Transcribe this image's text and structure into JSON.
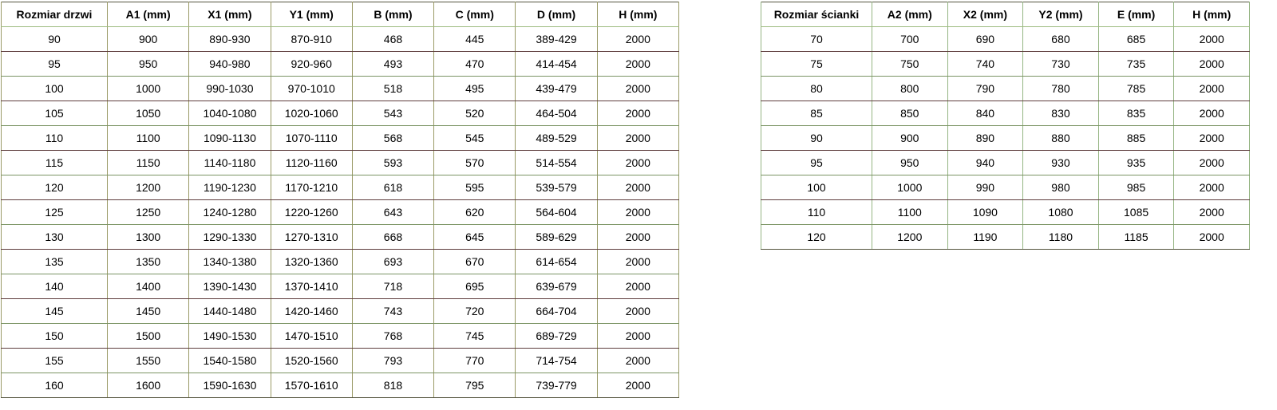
{
  "page": {
    "background": "#ffffff",
    "text_color": "#000000"
  },
  "colors": {
    "outer_border": "#55553f",
    "vertical_border_doors": "#9a9a66",
    "vertical_border_walls": "#95b583",
    "header_divider_green": "#9dbb7f",
    "row_divider_green": "#7b9464",
    "row_divider_maroon": "#5e3d3d"
  },
  "doors_table": {
    "name": "doors-size-table",
    "headers": [
      "Rozmiar drzwi",
      "A1 (mm)",
      "X1 (mm)",
      "Y1 (mm)",
      "B (mm)",
      "C (mm)",
      "D (mm)",
      "H (mm)"
    ],
    "rows": [
      [
        "90",
        "900",
        "890-930",
        "870-910",
        "468",
        "445",
        "389-429",
        "2000"
      ],
      [
        "95",
        "950",
        "940-980",
        "920-960",
        "493",
        "470",
        "414-454",
        "2000"
      ],
      [
        "100",
        "1000",
        "990-1030",
        "970-1010",
        "518",
        "495",
        "439-479",
        "2000"
      ],
      [
        "105",
        "1050",
        "1040-1080",
        "1020-1060",
        "543",
        "520",
        "464-504",
        "2000"
      ],
      [
        "110",
        "1100",
        "1090-1130",
        "1070-1110",
        "568",
        "545",
        "489-529",
        "2000"
      ],
      [
        "115",
        "1150",
        "1140-1180",
        "1120-1160",
        "593",
        "570",
        "514-554",
        "2000"
      ],
      [
        "120",
        "1200",
        "1190-1230",
        "1170-1210",
        "618",
        "595",
        "539-579",
        "2000"
      ],
      [
        "125",
        "1250",
        "1240-1280",
        "1220-1260",
        "643",
        "620",
        "564-604",
        "2000"
      ],
      [
        "130",
        "1300",
        "1290-1330",
        "1270-1310",
        "668",
        "645",
        "589-629",
        "2000"
      ],
      [
        "135",
        "1350",
        "1340-1380",
        "1320-1360",
        "693",
        "670",
        "614-654",
        "2000"
      ],
      [
        "140",
        "1400",
        "1390-1430",
        "1370-1410",
        "718",
        "695",
        "639-679",
        "2000"
      ],
      [
        "145",
        "1450",
        "1440-1480",
        "1420-1460",
        "743",
        "720",
        "664-704",
        "2000"
      ],
      [
        "150",
        "1500",
        "1490-1530",
        "1470-1510",
        "768",
        "745",
        "689-729",
        "2000"
      ],
      [
        "155",
        "1550",
        "1540-1580",
        "1520-1560",
        "793",
        "770",
        "714-754",
        "2000"
      ],
      [
        "160",
        "1600",
        "1590-1630",
        "1570-1610",
        "818",
        "795",
        "739-779",
        "2000"
      ]
    ]
  },
  "walls_table": {
    "name": "side-wall-size-table",
    "headers": [
      "Rozmiar ścianki",
      "A2 (mm)",
      "X2 (mm)",
      "Y2 (mm)",
      "E (mm)",
      "H (mm)"
    ],
    "rows": [
      [
        "70",
        "700",
        "690",
        "680",
        "685",
        "2000"
      ],
      [
        "75",
        "750",
        "740",
        "730",
        "735",
        "2000"
      ],
      [
        "80",
        "800",
        "790",
        "780",
        "785",
        "2000"
      ],
      [
        "85",
        "850",
        "840",
        "830",
        "835",
        "2000"
      ],
      [
        "90",
        "900",
        "890",
        "880",
        "885",
        "2000"
      ],
      [
        "95",
        "950",
        "940",
        "930",
        "935",
        "2000"
      ],
      [
        "100",
        "1000",
        "990",
        "980",
        "985",
        "2000"
      ],
      [
        "110",
        "1100",
        "1090",
        "1080",
        "1085",
        "2000"
      ],
      [
        "120",
        "1200",
        "1190",
        "1180",
        "1185",
        "2000"
      ]
    ]
  }
}
